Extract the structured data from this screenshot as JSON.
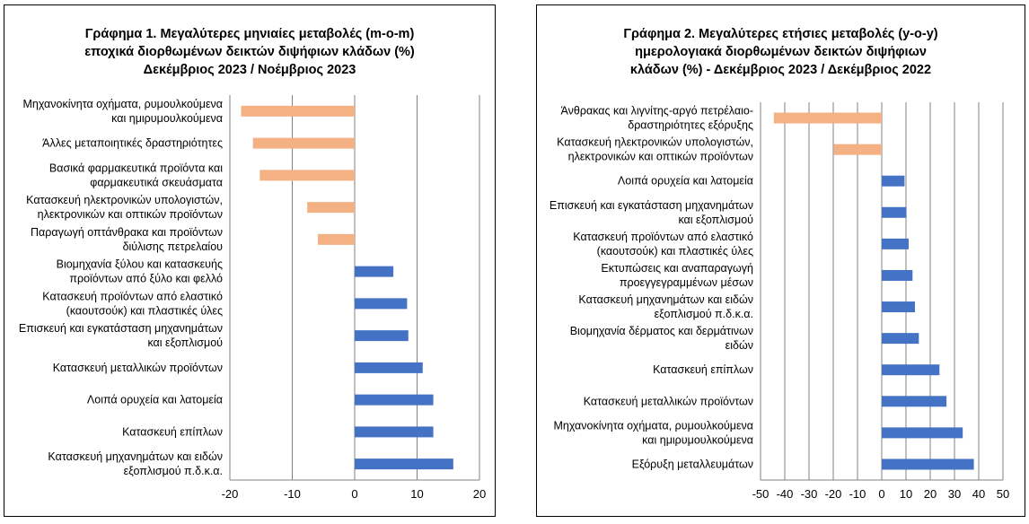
{
  "charts": {
    "colors": {
      "negative": "#F4B183",
      "positive": "#4472C4",
      "grid": "#808080",
      "axis": "#808080"
    },
    "chart1": {
      "title_lines": [
        "Γράφημα 1. Μεγαλύτερες μηνιαίες μεταβολές (m-o-m)",
        "εποχικά διορθωμένων δεικτών διψήφιων κλάδων (%)",
        "Δεκέμβριος 2023 / Νοέμβριος 2023"
      ]
    },
    "chart2": {
      "title_lines": [
        "Γράφημα 2. Μεγαλύτερες ετήσιες μεταβολές (y-o-y)",
        "ημερολογιακά διορθωμένων δεικτών διψήφιων",
        "κλάδων (%)  - Δεκέμβριος 2023 / Δεκέμβριος  2022"
      ]
    }
  },
  "chart_data": [
    {
      "type": "bar",
      "orientation": "horizontal",
      "title": "Γράφημα 1. Μεγαλύτερες μηνιαίες μεταβολές (m-o-m) εποχικά διορθωμένων δεικτών διψήφιων κλάδων (%) Δεκέμβριος 2023 / Νοέμβριος 2023",
      "xlim": [
        -20,
        20
      ],
      "xticks": [
        -20,
        -10,
        0,
        10,
        20
      ],
      "grid": true,
      "categories": [
        [
          "Μηχανοκίνητα οχήματα, ρυμουλκούμενα",
          "και ημιρυμουλκούμενα"
        ],
        [
          "Άλλες μεταποιητικές δραστηριότητες"
        ],
        [
          "Βασικά φαρμακευτικά προϊόντα και",
          "φαρμακευτικά σκευάσματα"
        ],
        [
          "Κατασκευή ηλεκτρονικών υπολογιστών,",
          "ηλεκτρονικών και οπτικών προϊόντων"
        ],
        [
          "Παραγωγή οπτάνθρακα και προϊόντων",
          "διύλισης πετρελαίου"
        ],
        [
          "Βιομηχανία ξύλου και κατασκευής",
          "προϊόντων από ξύλο και φελλό"
        ],
        [
          "Κατασκευή προϊόντων από ελαστικό",
          "(καουτσούκ) και πλαστικές ύλες"
        ],
        [
          "Επισκευή και εγκατάσταση μηχανημάτων",
          "και εξοπλισμού"
        ],
        [
          "Κατασκευή μεταλλικών προϊόντων"
        ],
        [
          "Λοιπά ορυχεία και λατομεία"
        ],
        [
          "Κατασκευή επίπλων"
        ],
        [
          "Κατασκευή μηχανημάτων και ειδών",
          "εξοπλισμού π.δ.κ.α."
        ]
      ],
      "values": [
        -18.2,
        -16.3,
        -15.2,
        -7.6,
        -5.9,
        6.2,
        8.4,
        8.6,
        10.9,
        12.6,
        12.6,
        15.8
      ]
    },
    {
      "type": "bar",
      "orientation": "horizontal",
      "title": "Γράφημα 2. Μεγαλύτερες ετήσιες μεταβολές (y-o-y) ημερολογιακά διορθωμένων δεικτών διψήφιων κλάδων (%) - Δεκέμβριος 2023 / Δεκέμβριος 2022",
      "xlim": [
        -50,
        50
      ],
      "xticks": [
        -50,
        -40,
        -30,
        -20,
        -10,
        0,
        10,
        20,
        30,
        40,
        50
      ],
      "grid": true,
      "categories": [
        [
          "Άνθρακας και λιγνίτης-αργό πετρέλαιο-",
          "δραστηριότητες εξόρυξης"
        ],
        [
          "Κατασκευή ηλεκτρονικών υπολογιστών,",
          "ηλεκτρονικών και οπτικών προϊόντων"
        ],
        [
          "Λοιπά ορυχεία και λατομεία"
        ],
        [
          "Επισκευή και εγκατάσταση μηχανημάτων",
          "και εξοπλισμού"
        ],
        [
          "Κατασκευή προϊόντων από ελαστικό",
          "(καουτσούκ) και πλαστικές ύλες"
        ],
        [
          "Εκτυπώσεις και αναπαραγωγή",
          "προεγγεγραμμένων μέσων"
        ],
        [
          "Κατασκευή μηχανημάτων και ειδών",
          "εξοπλισμού π.δ.κ.α."
        ],
        [
          "Βιομηχανία δέρματος και δερμάτινων",
          "ειδών"
        ],
        [
          "Κατασκευή επίπλων"
        ],
        [
          "Κατασκευή μεταλλικών προϊόντων"
        ],
        [
          "Μηχανοκίνητα οχήματα, ρυμουλκούμενα",
          "και ημιρυμουλκούμενα"
        ],
        [
          "Εξόρυξη μεταλλευμάτων"
        ]
      ],
      "values": [
        -44.5,
        -19.7,
        9.4,
        10.2,
        11.1,
        12.7,
        13.7,
        15.3,
        23.8,
        26.7,
        33.4,
        38
      ]
    }
  ]
}
